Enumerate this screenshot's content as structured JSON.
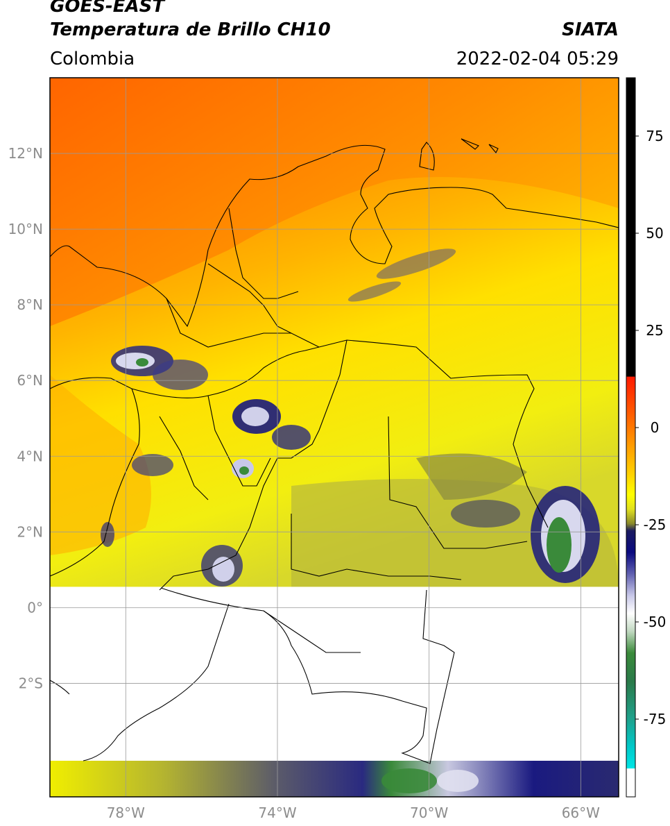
{
  "header": {
    "title_line1": "GOES-EAST",
    "title_line2": "Temperatura de Brillo CH10",
    "brand": "SIATA",
    "region": "Colombia",
    "timestamp": "2022-02-04 05:29"
  },
  "map": {
    "lon_range": [
      -80,
      -65
    ],
    "lat_range": [
      -5,
      14
    ],
    "lat_ticks": [
      {
        "value": 12,
        "label": "12°N"
      },
      {
        "value": 10,
        "label": "10°N"
      },
      {
        "value": 8,
        "label": "8°N"
      },
      {
        "value": 6,
        "label": "6°N"
      },
      {
        "value": 4,
        "label": "4°N"
      },
      {
        "value": 2,
        "label": "2°N"
      },
      {
        "value": 0,
        "label": "0°"
      },
      {
        "value": -2,
        "label": "2°S"
      }
    ],
    "lon_ticks": [
      {
        "value": -78,
        "label": "78°W"
      },
      {
        "value": -74,
        "label": "74°W"
      },
      {
        "value": -70,
        "label": "70°W"
      },
      {
        "value": -66,
        "label": "66°W"
      }
    ],
    "missing_data_band_lat": [
      -4.0,
      0.55
    ],
    "gridlines": true
  },
  "colorbar": {
    "range": [
      -95,
      90
    ],
    "ticks": [
      {
        "value": 75,
        "label": "75"
      },
      {
        "value": 50,
        "label": "50"
      },
      {
        "value": 25,
        "label": "25"
      },
      {
        "value": 0,
        "label": "0"
      },
      {
        "value": -25,
        "label": "-25"
      },
      {
        "value": -50,
        "label": "-50"
      },
      {
        "value": -75,
        "label": "-75"
      }
    ],
    "colors": {
      "black_top": "#000000",
      "red": "#ff1a00",
      "orange": "#ff8c00",
      "yellow": "#ffff00",
      "olive": "#8b8b2a",
      "navy": "#0a0a80",
      "white": "#ffffff",
      "green": "#3a8a3a",
      "teal": "#1fa08a",
      "cyan": "#00e5e5"
    }
  }
}
